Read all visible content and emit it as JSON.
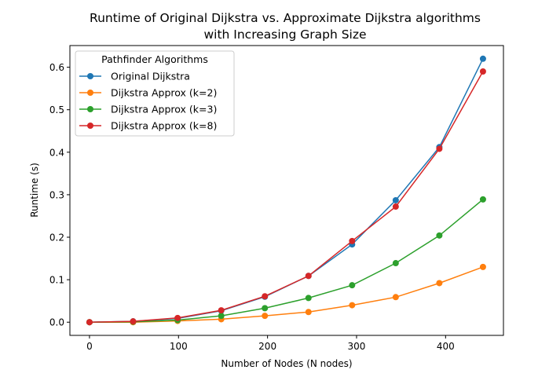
{
  "chart_data": {
    "type": "line",
    "title_line1": "Runtime of Original Dijkstra vs. Approximate Dijkstra algorithms",
    "title_line2": "with Increasing Graph Size",
    "xlabel": "Number of Nodes (N nodes)",
    "ylabel": "Runtime (s)",
    "xlim": [
      -22,
      465
    ],
    "ylim": [
      -0.031,
      0.651
    ],
    "xticks": [
      0,
      100,
      200,
      300,
      400
    ],
    "yticks": [
      0.0,
      0.1,
      0.2,
      0.3,
      0.4,
      0.5,
      0.6
    ],
    "ytick_labels": [
      "0.0",
      "0.1",
      "0.2",
      "0.3",
      "0.4",
      "0.5",
      "0.6"
    ],
    "legend_title": "Pathfinder Algorithms",
    "legend_position": "top-left",
    "x": [
      0,
      49,
      99,
      148,
      197,
      246,
      295,
      344,
      393,
      442
    ],
    "series": [
      {
        "name": "Original Dijkstra",
        "color": "#1f77b4",
        "values": [
          0.0,
          0.002,
          0.009,
          0.027,
          0.06,
          0.109,
          0.183,
          0.287,
          0.412,
          0.62
        ]
      },
      {
        "name": "Dijkstra Approx (k=2)",
        "color": "#ff7f0e",
        "values": [
          0.0,
          0.0,
          0.003,
          0.007,
          0.015,
          0.024,
          0.04,
          0.059,
          0.092,
          0.13
        ]
      },
      {
        "name": "Dijkstra Approx (k=3)",
        "color": "#2ca02c",
        "values": [
          0.0,
          0.001,
          0.005,
          0.015,
          0.033,
          0.057,
          0.087,
          0.139,
          0.204,
          0.289
        ]
      },
      {
        "name": "Dijkstra Approx (k=8)",
        "color": "#d62728",
        "values": [
          0.0,
          0.002,
          0.01,
          0.028,
          0.061,
          0.109,
          0.191,
          0.272,
          0.408,
          0.59
        ]
      }
    ]
  }
}
